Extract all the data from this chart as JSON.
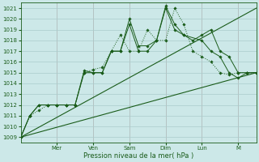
{
  "xlabel": "Pression niveau de la mer( hPa )",
  "ylim": [
    1008.5,
    1021.5
  ],
  "yticks": [
    1009,
    1010,
    1011,
    1012,
    1013,
    1014,
    1015,
    1016,
    1017,
    1018,
    1019,
    1020,
    1021
  ],
  "xlim": [
    0,
    13
  ],
  "bg_color": "#cce8e8",
  "grid_color": "#aacccc",
  "line_color": "#1a5c1a",
  "tick_color": "#cc9999",
  "day_labels": [
    "Mer",
    "Ven",
    "Sam",
    "Dim",
    "Lun",
    "M"
  ],
  "day_x": [
    2.0,
    4.0,
    6.0,
    8.0,
    10.0,
    12.0
  ],
  "series1_x": [
    0,
    0.5,
    1.0,
    1.5,
    2.0,
    2.5,
    3.0,
    3.5,
    4.0,
    4.5,
    5.0,
    5.5,
    6.0,
    6.5,
    7.0,
    7.5,
    8.0,
    8.5,
    9.0,
    9.5,
    10.0,
    10.5,
    11.0,
    11.5,
    12.0,
    12.5,
    13.0
  ],
  "series1_y": [
    1009,
    1011,
    1011.5,
    1012,
    1012,
    1012,
    1012,
    1015,
    1015.3,
    1015.5,
    1017,
    1018.5,
    1017,
    1017,
    1019,
    1018,
    1018,
    1021,
    1019.5,
    1017,
    1016.5,
    1016,
    1015,
    1014.8,
    1015,
    1015,
    1015
  ],
  "series2_x": [
    0,
    0.5,
    1.0,
    1.5,
    2.0,
    2.5,
    3.0,
    3.5,
    4.0,
    4.5,
    5.0,
    5.5,
    6.0,
    6.5,
    7.0,
    7.5,
    8.0,
    8.5,
    9.0,
    10.0,
    10.5,
    11.0,
    11.5,
    12.0,
    12.5,
    13.0
  ],
  "series2_y": [
    1009,
    1011,
    1012,
    1012,
    1012,
    1012,
    1012,
    1015.2,
    1015,
    1015,
    1017,
    1017,
    1019.5,
    1017,
    1017,
    1018,
    1021,
    1019,
    1018.5,
    1018,
    1017,
    1016.5,
    1015,
    1014.5,
    1015,
    1015
  ],
  "series3_x": [
    0,
    0.5,
    1.0,
    1.5,
    2.0,
    2.5,
    3.0,
    3.5,
    4.0,
    4.5,
    5.0,
    5.5,
    6.0,
    6.5,
    7.0,
    7.5,
    8.0,
    8.5,
    9.0,
    9.5,
    10.0,
    10.5,
    11.0,
    11.5,
    12.0,
    12.5,
    13.0
  ],
  "series3_y": [
    1009,
    1011,
    1012,
    1012,
    1012,
    1012,
    1012,
    1015,
    1015,
    1015,
    1017,
    1017,
    1020,
    1017.5,
    1017.5,
    1018,
    1021.2,
    1019.5,
    1018.5,
    1018,
    1018.5,
    1019,
    1017,
    1016.5,
    1015,
    1015,
    1015
  ],
  "trend1_x": [
    0,
    13.0
  ],
  "trend1_y": [
    1009,
    1021
  ],
  "trend2_x": [
    0,
    13.0
  ],
  "trend2_y": [
    1009,
    1015
  ]
}
